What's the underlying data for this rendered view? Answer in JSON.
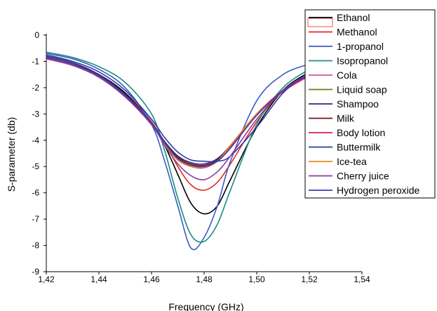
{
  "chart_data": {
    "type": "line",
    "title": "",
    "xlabel": "Frequency (GHz)",
    "ylabel": "S-parameter (db)",
    "xlim": [
      1.42,
      1.54
    ],
    "ylim": [
      -9,
      0
    ],
    "x_ticks": [
      1.42,
      1.44,
      1.46,
      1.48,
      1.5,
      1.52,
      1.54
    ],
    "x_tick_labels": [
      "1,42",
      "1,44",
      "1,46",
      "1,48",
      "1,50",
      "1,52",
      "1,54"
    ],
    "y_ticks": [
      0,
      -1,
      -2,
      -3,
      -4,
      -5,
      -6,
      -7,
      -8,
      -9
    ],
    "y_tick_labels": [
      "0",
      "-1",
      "-2",
      "-3",
      "-4",
      "-5",
      "-6",
      "-7",
      "-8",
      "-9"
    ],
    "grid": false,
    "legend_position": "top-right",
    "x": [
      1.42,
      1.43,
      1.44,
      1.45,
      1.46,
      1.465,
      1.47,
      1.475,
      1.48,
      1.485,
      1.49,
      1.5,
      1.51,
      1.52
    ],
    "series": [
      {
        "name": "Ethanol",
        "color": "#000000",
        "values": [
          -0.85,
          -1.1,
          -1.5,
          -2.2,
          -3.3,
          -4.2,
          -5.3,
          -6.4,
          -6.8,
          -6.5,
          -5.5,
          -3.5,
          -2.1,
          -1.4
        ]
      },
      {
        "name": "Methanol",
        "color": "#e8262b",
        "values": [
          -0.9,
          -1.15,
          -1.55,
          -2.25,
          -3.3,
          -4.1,
          -5.0,
          -5.7,
          -5.9,
          -5.6,
          -4.9,
          -3.3,
          -2.1,
          -1.5
        ]
      },
      {
        "name": "1-propanol",
        "color": "#3a5bc7",
        "values": [
          -0.7,
          -0.9,
          -1.3,
          -2.0,
          -3.4,
          -4.8,
          -6.5,
          -8.1,
          -7.7,
          -6.5,
          -4.8,
          -2.5,
          -1.5,
          -1.1
        ]
      },
      {
        "name": "Isopropanol",
        "color": "#1a8c82",
        "values": [
          -0.65,
          -0.85,
          -1.2,
          -1.8,
          -3.0,
          -4.4,
          -6.2,
          -7.6,
          -7.85,
          -7.2,
          -5.9,
          -3.4,
          -2.0,
          -1.3
        ]
      },
      {
        "name": "Cola",
        "color": "#d0579e",
        "values": [
          -0.9,
          -1.15,
          -1.6,
          -2.35,
          -3.4,
          -4.15,
          -4.75,
          -5.0,
          -5.05,
          -4.8,
          -4.2,
          -3.0,
          -2.1,
          -1.5
        ]
      },
      {
        "name": "Liquid soap",
        "color": "#6b7d1c",
        "values": [
          -0.85,
          -1.1,
          -1.55,
          -2.3,
          -3.4,
          -4.1,
          -4.7,
          -4.95,
          -5.0,
          -4.75,
          -4.2,
          -3.0,
          -2.1,
          -1.5
        ]
      },
      {
        "name": "Shampoo",
        "color": "#2a2a7a",
        "values": [
          -0.8,
          -1.05,
          -1.5,
          -2.25,
          -3.35,
          -4.05,
          -4.6,
          -4.85,
          -4.9,
          -4.7,
          -4.2,
          -3.0,
          -2.1,
          -1.5
        ]
      },
      {
        "name": "Milk",
        "color": "#6e1a1a",
        "values": [
          -0.85,
          -1.1,
          -1.55,
          -2.3,
          -3.35,
          -4.1,
          -4.65,
          -4.9,
          -4.95,
          -4.75,
          -4.25,
          -3.0,
          -2.1,
          -1.5
        ]
      },
      {
        "name": "Body lotion",
        "color": "#d6186f",
        "values": [
          -0.9,
          -1.15,
          -1.6,
          -2.35,
          -3.4,
          -4.15,
          -4.75,
          -4.95,
          -5.0,
          -4.8,
          -4.25,
          -3.05,
          -2.15,
          -1.55
        ]
      },
      {
        "name": "Buttermilk",
        "color": "#2b3a9e",
        "values": [
          -0.75,
          -1.0,
          -1.4,
          -2.1,
          -3.2,
          -3.9,
          -4.45,
          -4.75,
          -4.8,
          -4.8,
          -4.6,
          -3.5,
          -2.2,
          -1.4
        ]
      },
      {
        "name": "Ice-tea",
        "color": "#e88a1c",
        "values": [
          -0.9,
          -1.15,
          -1.6,
          -2.35,
          -3.4,
          -4.15,
          -4.75,
          -5.0,
          -5.0,
          -4.8,
          -4.2,
          -3.0,
          -2.1,
          -1.5
        ]
      },
      {
        "name": "Cherry juice",
        "color": "#8a3aa0",
        "values": [
          -0.9,
          -1.15,
          -1.6,
          -2.35,
          -3.4,
          -4.2,
          -4.9,
          -5.35,
          -5.5,
          -5.2,
          -4.6,
          -3.2,
          -2.1,
          -1.5
        ]
      },
      {
        "name": "Hydrogen peroxide",
        "color": "#4a3aa8",
        "values": [
          -0.85,
          -1.1,
          -1.55,
          -2.3,
          -3.35,
          -4.1,
          -4.7,
          -4.95,
          -5.0,
          -4.8,
          -4.3,
          -3.05,
          -2.1,
          -1.5
        ]
      }
    ]
  }
}
